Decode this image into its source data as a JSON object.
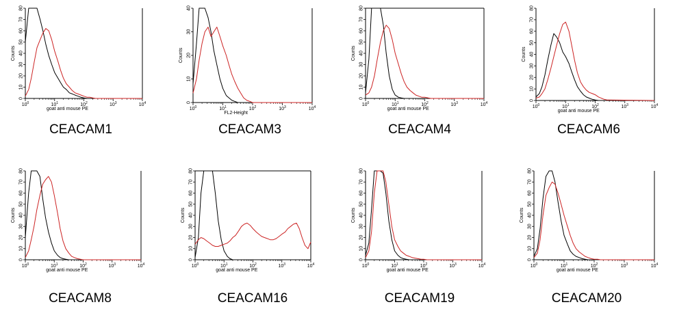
{
  "figure": {
    "colors": {
      "control": "#000000",
      "stained": "#cc2222"
    }
  },
  "chart_data": [
    {
      "type": "line",
      "title": "CEACAM1",
      "xlabel": "goat anti mouse PE",
      "ylabel": "Counts",
      "xscale": "log",
      "xlim": [
        1,
        10000
      ],
      "ylim": [
        0,
        80
      ],
      "yticks": [
        0,
        10,
        20,
        30,
        40,
        50,
        60,
        70,
        80
      ],
      "xtick_labels": [
        "10^0",
        "10^1",
        "10^2",
        "10^3",
        "10^4"
      ],
      "series": [
        {
          "x": [
            1.0,
            1.3,
            1.6,
            2.0,
            2.5,
            3.2,
            4.0,
            5.0,
            6.3,
            8.0,
            10,
            13,
            16,
            20,
            25,
            32,
            40,
            50,
            63,
            80,
            100,
            130,
            160,
            200,
            250,
            320,
            400,
            1000,
            10000
          ],
          "y": [
            50,
            80,
            80,
            80,
            80,
            70,
            60,
            48,
            38,
            30,
            23,
            18,
            14,
            10,
            8,
            5,
            4,
            3,
            2,
            1,
            0.5,
            0,
            0,
            0,
            0,
            0,
            0,
            0,
            0
          ]
        },
        {
          "x": [
            1.0,
            1.3,
            1.6,
            2.0,
            2.5,
            3.2,
            4.0,
            5.0,
            6.3,
            8.0,
            10,
            13,
            16,
            20,
            25,
            32,
            40,
            50,
            63,
            80,
            100,
            130,
            160,
            200,
            250,
            320,
            400,
            1000,
            10000
          ],
          "y": [
            2,
            8,
            18,
            32,
            45,
            52,
            58,
            62,
            60,
            52,
            42,
            33,
            25,
            18,
            13,
            10,
            7,
            5,
            4,
            3,
            2,
            1,
            1,
            0.5,
            0,
            0,
            0,
            0,
            0
          ]
        }
      ]
    },
    {
      "type": "line",
      "title": "CEACAM3",
      "xlabel": "FL2-Height",
      "ylabel": "Counts",
      "xscale": "log",
      "xlim": [
        1,
        10000
      ],
      "ylim": [
        0,
        40
      ],
      "yticks": [
        0,
        10,
        20,
        30,
        40
      ],
      "xtick_labels": [
        "10^0",
        "10^1",
        "10^2",
        "10^3",
        "10^4"
      ],
      "series": [
        {
          "x": [
            1.0,
            1.3,
            1.6,
            2.0,
            2.5,
            3.2,
            4.0,
            5.0,
            6.3,
            8.0,
            10,
            13,
            16,
            20,
            25,
            32,
            40,
            50,
            63,
            80,
            100,
            10000
          ],
          "y": [
            8,
            25,
            40,
            40,
            40,
            36,
            30,
            22,
            16,
            10,
            6,
            3,
            2,
            1,
            0.5,
            0,
            0,
            0,
            0,
            0,
            0,
            0
          ]
        },
        {
          "x": [
            1.0,
            1.3,
            1.6,
            2.0,
            2.5,
            3.2,
            4.0,
            5.0,
            6.3,
            8.0,
            10,
            13,
            16,
            20,
            25,
            32,
            40,
            50,
            63,
            80,
            100,
            10000
          ],
          "y": [
            4,
            10,
            18,
            25,
            30,
            32,
            28,
            30,
            32,
            28,
            24,
            20,
            16,
            12,
            9,
            6,
            4,
            2,
            1,
            0.5,
            0,
            0
          ]
        }
      ]
    },
    {
      "type": "line",
      "title": "CEACAM4",
      "xlabel": "goat anti mouse PE",
      "ylabel": "Counts",
      "xscale": "log",
      "xlim": [
        1,
        10000
      ],
      "ylim": [
        0,
        80
      ],
      "yticks": [
        0,
        10,
        20,
        30,
        40,
        50,
        60,
        70,
        80
      ],
      "xtick_labels": [
        "10^0",
        "10^1",
        "10^2",
        "10^3",
        "10^4"
      ],
      "series": [
        {
          "x": [
            1.0,
            1.3,
            1.6,
            2.0,
            2.5,
            3.2,
            4.0,
            5.0,
            6.3,
            8.0,
            10,
            13,
            16,
            20,
            10000
          ],
          "y": [
            5,
            35,
            80,
            80,
            80,
            80,
            65,
            40,
            20,
            8,
            3,
            1,
            0.5,
            0,
            0
          ]
        },
        {
          "x": [
            1.0,
            1.3,
            1.6,
            2.0,
            2.5,
            3.2,
            4.0,
            5.0,
            6.3,
            8.0,
            10,
            13,
            16,
            20,
            25,
            32,
            40,
            50,
            63,
            80,
            100,
            130,
            160,
            200,
            10000
          ],
          "y": [
            3,
            5,
            10,
            20,
            35,
            50,
            60,
            65,
            62,
            52,
            40,
            30,
            22,
            15,
            10,
            7,
            5,
            3,
            2,
            1,
            1,
            0.5,
            0,
            0,
            0
          ]
        }
      ]
    },
    {
      "type": "line",
      "title": "CEACAM6",
      "xlabel": "goat anti mouse PE",
      "ylabel": "Counts",
      "xscale": "log",
      "xlim": [
        1,
        10000
      ],
      "ylim": [
        0,
        80
      ],
      "yticks": [
        0,
        10,
        20,
        30,
        40,
        50,
        60,
        70,
        80
      ],
      "xtick_labels": [
        "10^0",
        "10^1",
        "10^2",
        "10^3",
        "10^4"
      ],
      "series": [
        {
          "x": [
            1.0,
            1.3,
            1.6,
            2.0,
            2.5,
            3.2,
            4.0,
            5.0,
            6.3,
            8.0,
            10,
            13,
            16,
            20,
            25,
            32,
            40,
            50,
            63,
            80,
            100,
            130,
            160,
            10000
          ],
          "y": [
            3,
            6,
            12,
            22,
            35,
            48,
            58,
            55,
            50,
            42,
            38,
            32,
            25,
            18,
            12,
            8,
            5,
            3,
            2,
            1,
            0.5,
            0,
            0,
            0
          ]
        },
        {
          "x": [
            1.0,
            1.3,
            1.6,
            2.0,
            2.5,
            3.2,
            4.0,
            5.0,
            6.3,
            8.0,
            10,
            13,
            16,
            20,
            25,
            32,
            40,
            50,
            63,
            80,
            100,
            130,
            160,
            200,
            250,
            10000
          ],
          "y": [
            2,
            3,
            6,
            10,
            18,
            28,
            38,
            48,
            58,
            66,
            68,
            60,
            48,
            35,
            24,
            16,
            12,
            9,
            7,
            6,
            5,
            3,
            2,
            1,
            0.5,
            0
          ]
        }
      ]
    },
    {
      "type": "line",
      "title": "CEACAM8",
      "xlabel": "goat anti mouse PE",
      "ylabel": "Counts",
      "xscale": "log",
      "xlim": [
        1,
        10000
      ],
      "ylim": [
        0,
        80
      ],
      "yticks": [
        0,
        10,
        20,
        30,
        40,
        50,
        60,
        70,
        80
      ],
      "xtick_labels": [
        "10^0",
        "10^1",
        "10^2",
        "10^3",
        "10^4"
      ],
      "series": [
        {
          "x": [
            1.0,
            1.3,
            1.6,
            2.0,
            2.5,
            3.2,
            4.0,
            5.0,
            6.3,
            8.0,
            10,
            13,
            16,
            20,
            25,
            32,
            40,
            10000
          ],
          "y": [
            20,
            60,
            80,
            80,
            80,
            75,
            55,
            38,
            25,
            15,
            8,
            4,
            2,
            1,
            0.5,
            0,
            0,
            0
          ]
        },
        {
          "x": [
            1.0,
            1.3,
            1.6,
            2.0,
            2.5,
            3.2,
            4.0,
            5.0,
            6.3,
            8.0,
            10,
            13,
            16,
            20,
            25,
            32,
            40,
            50,
            63,
            80,
            100,
            10000
          ],
          "y": [
            2,
            8,
            18,
            30,
            45,
            58,
            68,
            72,
            75,
            70,
            58,
            42,
            28,
            17,
            10,
            6,
            3,
            2,
            1,
            0.5,
            0,
            0
          ]
        }
      ]
    },
    {
      "type": "line",
      "title": "CEACAM16",
      "xlabel": "goat anti mouse PE",
      "ylabel": "Counts",
      "xscale": "log",
      "xlim": [
        1,
        10000
      ],
      "ylim": [
        0,
        80
      ],
      "yticks": [
        0,
        10,
        20,
        30,
        40,
        50,
        60,
        70,
        80
      ],
      "xtick_labels": [
        "10^0",
        "10^1",
        "10^2",
        "10^3",
        "10^4"
      ],
      "series": [
        {
          "x": [
            1.0,
            1.3,
            1.6,
            2.0,
            2.5,
            3.2,
            4.0,
            5.0,
            6.3,
            8.0,
            10,
            13,
            16,
            20,
            10000
          ],
          "y": [
            2,
            20,
            60,
            80,
            80,
            80,
            80,
            60,
            35,
            18,
            8,
            3,
            1,
            0,
            0
          ]
        },
        {
          "x": [
            1.0,
            1.3,
            1.6,
            2.0,
            2.5,
            3.2,
            4.0,
            5.0,
            6.3,
            8.0,
            10,
            13,
            16,
            20,
            25,
            32,
            40,
            50,
            63,
            80,
            100,
            130,
            160,
            200,
            250,
            320,
            400,
            500,
            630,
            800,
            1000,
            1300,
            1600,
            2000,
            2500,
            3200,
            4000,
            5000,
            6300,
            8000,
            10000
          ],
          "y": [
            14,
            18,
            20,
            19,
            17,
            15,
            13,
            12,
            12,
            13,
            14,
            15,
            17,
            20,
            22,
            26,
            30,
            32,
            33,
            31,
            28,
            25,
            23,
            21,
            20,
            19,
            18,
            18,
            19,
            21,
            23,
            25,
            28,
            30,
            32,
            33,
            28,
            20,
            13,
            10,
            16
          ]
        }
      ]
    },
    {
      "type": "line",
      "title": "CEACAM19",
      "xlabel": "goat anti mouse PE",
      "ylabel": "Counts",
      "xscale": "log",
      "xlim": [
        1,
        10000
      ],
      "ylim": [
        0,
        80
      ],
      "yticks": [
        0,
        10,
        20,
        30,
        40,
        50,
        60,
        70,
        80
      ],
      "xtick_labels": [
        "10^0",
        "10^1",
        "10^2",
        "10^3",
        "10^4"
      ],
      "series": [
        {
          "x": [
            1.0,
            1.3,
            1.6,
            2.0,
            2.5,
            3.2,
            4.0,
            5.0,
            6.3,
            8.0,
            10,
            13,
            16,
            20,
            25,
            32,
            40,
            10000
          ],
          "y": [
            4,
            15,
            45,
            80,
            80,
            80,
            78,
            60,
            35,
            18,
            8,
            4,
            2,
            1,
            0.5,
            0,
            0,
            0
          ]
        },
        {
          "x": [
            1.0,
            1.3,
            1.6,
            2.0,
            2.5,
            3.2,
            4.0,
            5.0,
            6.3,
            8.0,
            10,
            13,
            16,
            20,
            25,
            32,
            40,
            50,
            63,
            80,
            100,
            130,
            160,
            200,
            10000
          ],
          "y": [
            2,
            8,
            25,
            60,
            80,
            80,
            80,
            70,
            50,
            30,
            18,
            12,
            8,
            6,
            4,
            3,
            2,
            1.5,
            1,
            0.5,
            0.5,
            0,
            0,
            0,
            0
          ]
        }
      ]
    },
    {
      "type": "line",
      "title": "CEACAM20",
      "xlabel": "goat anti mouse PE",
      "ylabel": "Counts",
      "xscale": "log",
      "xlim": [
        1,
        10000
      ],
      "ylim": [
        0,
        80
      ],
      "yticks": [
        0,
        10,
        20,
        30,
        40,
        50,
        60,
        70,
        80
      ],
      "xtick_labels": [
        "10^0",
        "10^1",
        "10^2",
        "10^3",
        "10^4"
      ],
      "series": [
        {
          "x": [
            1.0,
            1.3,
            1.6,
            2.0,
            2.5,
            3.2,
            4.0,
            5.0,
            6.3,
            8.0,
            10,
            13,
            16,
            20,
            25,
            32,
            40,
            50,
            63,
            80,
            10000
          ],
          "y": [
            3,
            10,
            28,
            55,
            75,
            80,
            80,
            70,
            52,
            35,
            22,
            14,
            8,
            5,
            3,
            2,
            1,
            0.5,
            0,
            0,
            0
          ]
        },
        {
          "x": [
            1.0,
            1.3,
            1.6,
            2.0,
            2.5,
            3.2,
            4.0,
            5.0,
            6.3,
            8.0,
            10,
            13,
            16,
            20,
            25,
            32,
            40,
            50,
            63,
            80,
            100,
            130,
            160,
            200,
            10000
          ],
          "y": [
            2,
            6,
            18,
            40,
            58,
            65,
            70,
            68,
            60,
            50,
            40,
            30,
            22,
            15,
            10,
            7,
            5,
            3,
            2,
            1,
            0.5,
            0.5,
            0,
            0,
            0
          ]
        }
      ]
    }
  ]
}
